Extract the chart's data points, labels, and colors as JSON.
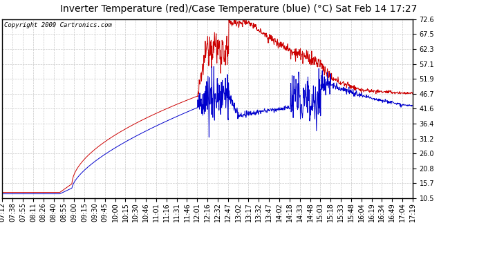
{
  "title": "Inverter Temperature (red)/Case Temperature (blue) (°C) Sat Feb 14 17:27",
  "copyright": "Copyright 2009 Cartronics.com",
  "yticks": [
    10.5,
    15.7,
    20.8,
    26.0,
    31.2,
    36.4,
    41.6,
    46.7,
    51.9,
    57.1,
    62.3,
    67.5,
    72.6
  ],
  "ymin": 10.5,
  "ymax": 72.6,
  "xtick_labels": [
    "07:12",
    "07:38",
    "07:55",
    "08:11",
    "08:26",
    "08:40",
    "08:55",
    "09:00",
    "09:15",
    "09:30",
    "09:45",
    "10:00",
    "10:15",
    "10:30",
    "10:46",
    "11:01",
    "11:16",
    "11:31",
    "11:46",
    "12:01",
    "12:16",
    "12:32",
    "12:47",
    "13:02",
    "13:17",
    "13:32",
    "13:47",
    "14:02",
    "14:18",
    "14:33",
    "14:48",
    "15:03",
    "15:18",
    "15:33",
    "15:48",
    "16:04",
    "16:19",
    "16:34",
    "16:49",
    "17:04",
    "17:19"
  ],
  "bg_color": "#ffffff",
  "plot_bg_color": "#ffffff",
  "grid_color": "#c8c8c8",
  "red_color": "#cc0000",
  "blue_color": "#0000cc",
  "title_fontsize": 10,
  "copyright_fontsize": 6.5,
  "tick_fontsize": 7,
  "linewidth": 0.7
}
